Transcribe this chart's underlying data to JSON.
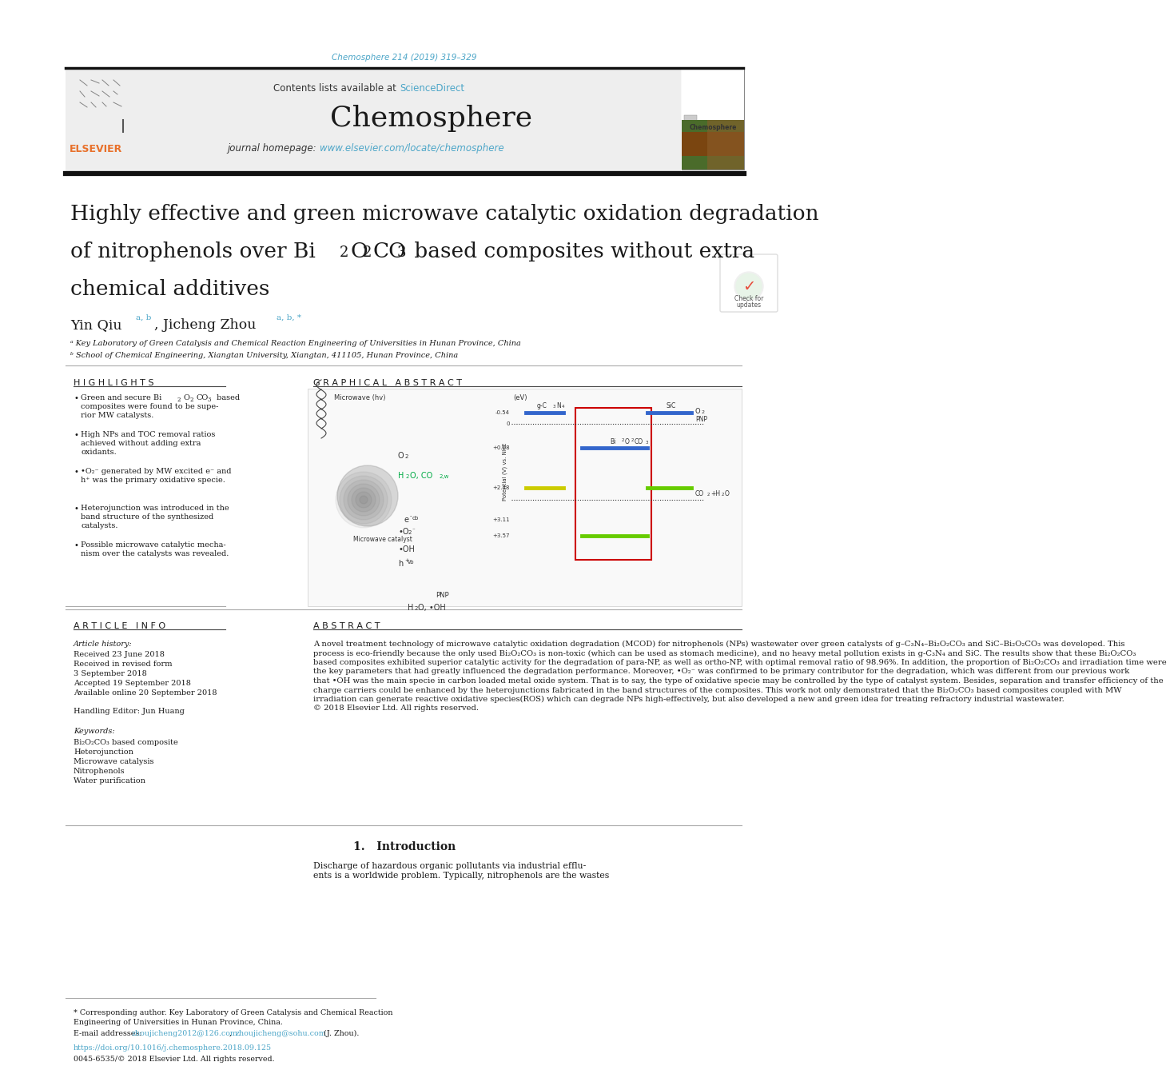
{
  "page_bg": "#ffffff",
  "top_citation": "Chemosphere 214 (2019) 319–329",
  "top_citation_color": "#4da6c8",
  "journal_header_bg": "#f0f0f0",
  "contents_text": "Contents lists available at ",
  "sciencedirect_text": "ScienceDirect",
  "sciencedirect_color": "#4da6c8",
  "journal_name": "Chemosphere",
  "journal_name_fontsize": 26,
  "homepage_text": "journal homepage: ",
  "homepage_url": "www.elsevier.com/locate/chemosphere",
  "homepage_url_color": "#4da6c8",
  "divider_color": "#1a1a1a",
  "article_title_line1": "Highly effective and green microwave catalytic oxidation degradation",
  "article_title_line3": "chemical additives",
  "article_title_fontsize": 19,
  "authors_sup_color": "#4da6c8",
  "affil_a": "ᵃ Key Laboratory of Green Catalysis and Chemical Reaction Engineering of Universities in Hunan Province, China",
  "affil_b": "ᵇ School of Chemical Engineering, Xiangtan University, Xiangtan, 411105, Hunan Province, China",
  "highlights_title": "H I G H L I G H T S",
  "graphical_abstract_title": "G R A P H I C A L   A B S T R A C T",
  "article_info_title": "A R T I C L E   I N F O",
  "article_history_title": "Article history:",
  "received_date": "Received 23 June 2018",
  "handling_editor": "Handling Editor: Jun Huang",
  "keywords_title": "Keywords:",
  "keywords": [
    "Bi₂O₂CO₃ based composite",
    "Heterojunction",
    "Microwave catalysis",
    "Nitrophenols",
    "Water purification"
  ],
  "abstract_title": "A B S T R A C T",
  "abstract_lines": [
    "A novel treatment technology of microwave catalytic oxidation degradation (MCOD) for nitrophenols (NPs) wastewater over green catalysts of g–C₃N₄–Bi₂O₂CO₃ and SiC–Bi₂O₂CO₃ was developed. This",
    "process is eco-friendly because the only used Bi₂O₂CO₃ is non-toxic (which can be used as stomach medicine), and no heavy metal pollution exists in g-C₃N₄ and SiC. The results show that these Bi₂O₂CO₃",
    "based composites exhibited superior catalytic activity for the degradation of para-NP, as well as ortho-NP, with optimal removal ratio of 98.96%. In addition, the proportion of Bi₂O₂CO₃ and irradiation time were",
    "the key parameters that had greatly influenced the degradation performance. Moreover, •O₂⁻ was confirmed to be primary contributor for the degradation, which was different from our previous work",
    "that •OH was the main specie in carbon loaded metal oxide system. That is to say, the type of oxidative specie may be controlled by the type of catalyst system. Besides, separation and transfer efficiency of the",
    "charge carriers could be enhanced by the heterojunctions fabricated in the band structures of the composites. This work not only demonstrated that the Bi₂O₂CO₃ based composites coupled with MW",
    "irradiation can generate reactive oxidative species(ROS) which can degrade NPs high-effectively, but also developed a new and green idea for treating refractory industrial wastewater.",
    "© 2018 Elsevier Ltd. All rights reserved."
  ],
  "introduction_title": "1.   Introduction",
  "introduction_lines": [
    "Discharge of hazardous organic pollutants via industrial efflu-",
    "ents is a worldwide problem. Typically, nitrophenols are the wastes"
  ],
  "footnote_corresponding": "* Corresponding author. Key Laboratory of Green Catalysis and Chemical Reaction",
  "footnote_corresponding2": "Engineering of Universities in Hunan Province, China.",
  "footnote_email_label": "E-mail addresses: ",
  "footnote_email1": "zhoujicheng2012@126.com",
  "footnote_comma": ", ",
  "footnote_email2": "zhoujicheng@sohu.com",
  "footnote_email3": " (J. Zhou).",
  "doi_text": "https://doi.org/10.1016/j.chemosphere.2018.09.125",
  "doi_color": "#4da6c8",
  "issn_text": "0045-6535/© 2018 Elsevier Ltd. All rights reserved."
}
